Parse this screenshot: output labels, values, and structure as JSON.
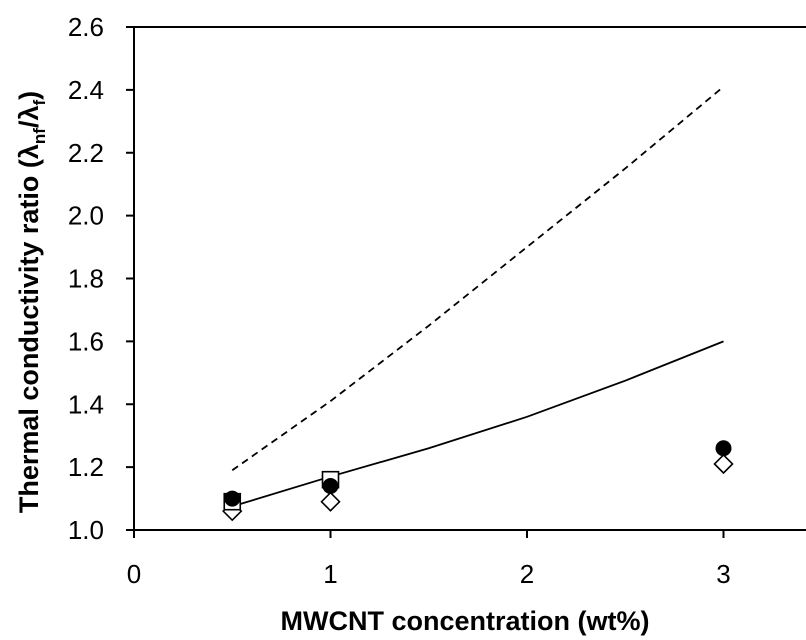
{
  "chart_data": {
    "type": "scatter",
    "title": "",
    "xlabel": "MWCNT concentration (wt%)",
    "ylabel_parts": {
      "prefix": "Thermal conductivity ratio (λ",
      "sub1": "nf",
      "mid": "/λ",
      "sub2": "f",
      "suffix": ")"
    },
    "xlim": [
      0,
      3.5
    ],
    "ylim": [
      1.0,
      2.6
    ],
    "x_ticks": [
      0,
      1,
      2,
      3
    ],
    "x_tick_labels": [
      "0",
      "1",
      "2",
      "3"
    ],
    "y_ticks": [
      1.0,
      1.2,
      1.4,
      1.6,
      1.8,
      2.0,
      2.2,
      2.4,
      2.6
    ],
    "y_tick_labels": [
      "1.0",
      "1.2",
      "1.4",
      "1.6",
      "1.8",
      "2.0",
      "2.2",
      "2.4",
      "2.6"
    ],
    "grid": false,
    "legend": "none",
    "series": [
      {
        "marker": "filled-circle",
        "x": [
          0.5,
          1.0,
          3.0
        ],
        "y": [
          1.1,
          1.14,
          1.26
        ]
      },
      {
        "marker": "open-square",
        "x": [
          0.5,
          1.0
        ],
        "y": [
          1.09,
          1.16
        ]
      },
      {
        "marker": "open-diamond",
        "x": [
          0.5,
          1.0,
          3.0
        ],
        "y": [
          1.06,
          1.09,
          1.21
        ]
      },
      {
        "line": "solid",
        "x": [
          0.5,
          1.0,
          1.5,
          2.0,
          2.5,
          3.0
        ],
        "y": [
          1.075,
          1.17,
          1.26,
          1.36,
          1.475,
          1.6
        ]
      },
      {
        "line": "dashed",
        "x": [
          0.5,
          1.0,
          1.5,
          2.0,
          2.5,
          3.0
        ],
        "y": [
          1.19,
          1.41,
          1.65,
          1.9,
          2.15,
          2.41
        ]
      }
    ]
  }
}
